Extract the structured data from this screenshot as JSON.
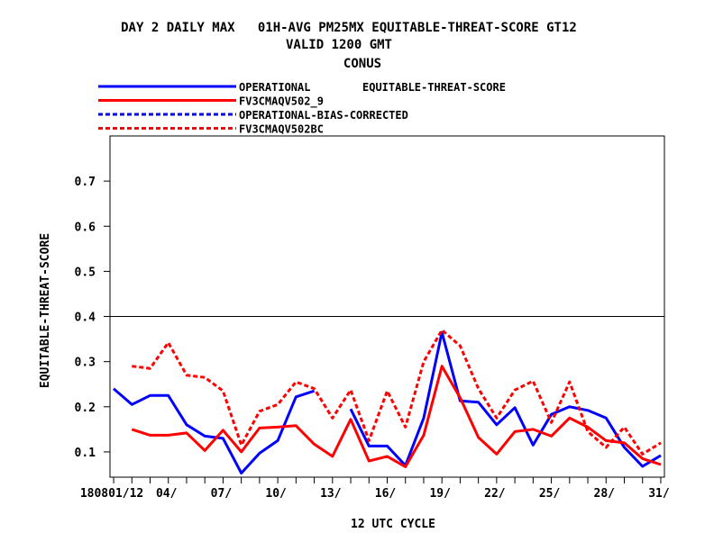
{
  "chart_data": {
    "type": "line",
    "title_lines": [
      "DAY 2 DAILY MAX   01H-AVG PM25MX EQUITABLE-THREAT-SCORE GT12",
      "VALID 1200 GMT",
      "CONUS"
    ],
    "legend_title": "EQUITABLE-THREAT-SCORE",
    "xlabel": "12 UTC CYCLE",
    "ylabel": "EQUITABLE-THREAT-SCORE",
    "ylim": [
      0.044,
      0.8
    ],
    "xlim": [
      0.8,
      31.2
    ],
    "y_ticks": [
      0.1,
      0.2,
      0.3,
      0.4,
      0.5,
      0.6,
      0.7
    ],
    "y_tick_labels": [
      "0.1",
      "0.2",
      "0.3",
      "0.4",
      "0.5",
      "0.6",
      "0.7"
    ],
    "x_ticks": [
      1,
      4,
      7,
      10,
      13,
      16,
      19,
      22,
      25,
      28,
      31
    ],
    "x_tick_labels": [
      "180801/12",
      "04/",
      "07/",
      "10/",
      "13/",
      "16/",
      "19/",
      "22/",
      "25/",
      "28/",
      "31/"
    ],
    "reference_line": 0.4,
    "grid": false,
    "legend_position": "top",
    "series": [
      {
        "name": "OPERATIONAL",
        "color": "#0000ff",
        "dash": "solid",
        "x": [
          1,
          2,
          3,
          4,
          5,
          6,
          7,
          8,
          9,
          10,
          11,
          12,
          13,
          14,
          15,
          16,
          17,
          18,
          19,
          20,
          21,
          22,
          23,
          24,
          25,
          26,
          27,
          28,
          29,
          30,
          31
        ],
        "values": [
          0.24,
          0.205,
          0.225,
          0.225,
          0.16,
          0.135,
          0.13,
          0.053,
          0.097,
          0.125,
          0.222,
          0.235,
          null,
          0.195,
          0.113,
          0.113,
          0.07,
          0.175,
          0.365,
          0.213,
          0.21,
          0.16,
          0.198,
          0.115,
          0.183,
          0.2,
          0.192,
          0.175,
          0.11,
          0.068,
          0.092
        ]
      },
      {
        "name": "FV3CMAQV502_9",
        "color": "#ff0000",
        "dash": "solid",
        "x": [
          1,
          2,
          3,
          4,
          5,
          6,
          7,
          8,
          9,
          10,
          11,
          12,
          13,
          14,
          15,
          16,
          17,
          18,
          19,
          20,
          21,
          22,
          23,
          24,
          25,
          26,
          27,
          28,
          29,
          30,
          31
        ],
        "values": [
          null,
          0.15,
          0.137,
          0.137,
          0.142,
          0.103,
          0.148,
          0.1,
          0.153,
          0.155,
          0.158,
          0.117,
          0.09,
          0.172,
          0.08,
          0.09,
          0.067,
          0.137,
          0.29,
          0.22,
          0.132,
          0.095,
          0.145,
          0.15,
          0.135,
          0.175,
          0.155,
          0.125,
          0.12,
          0.085,
          0.072
        ]
      },
      {
        "name": "OPERATIONAL-BIAS-CORRECTED",
        "color": "#0000ff",
        "dash": "dashed",
        "x": [],
        "values": []
      },
      {
        "name": "FV3CMAQV502BC",
        "color": "#ff0000",
        "dash": "dashed",
        "x": [
          1,
          2,
          3,
          4,
          5,
          6,
          7,
          8,
          9,
          10,
          11,
          12,
          13,
          14,
          15,
          16,
          17,
          18,
          19,
          20,
          21,
          22,
          23,
          24,
          25,
          26,
          27,
          28,
          29,
          30,
          31
        ],
        "values": [
          null,
          0.29,
          0.285,
          0.342,
          0.27,
          0.265,
          0.235,
          0.115,
          0.19,
          0.205,
          0.255,
          0.24,
          0.175,
          0.237,
          0.125,
          0.235,
          0.155,
          0.3,
          0.37,
          0.335,
          0.24,
          0.175,
          0.237,
          0.257,
          0.165,
          0.255,
          0.145,
          0.11,
          0.155,
          0.095,
          0.12
        ]
      }
    ]
  }
}
